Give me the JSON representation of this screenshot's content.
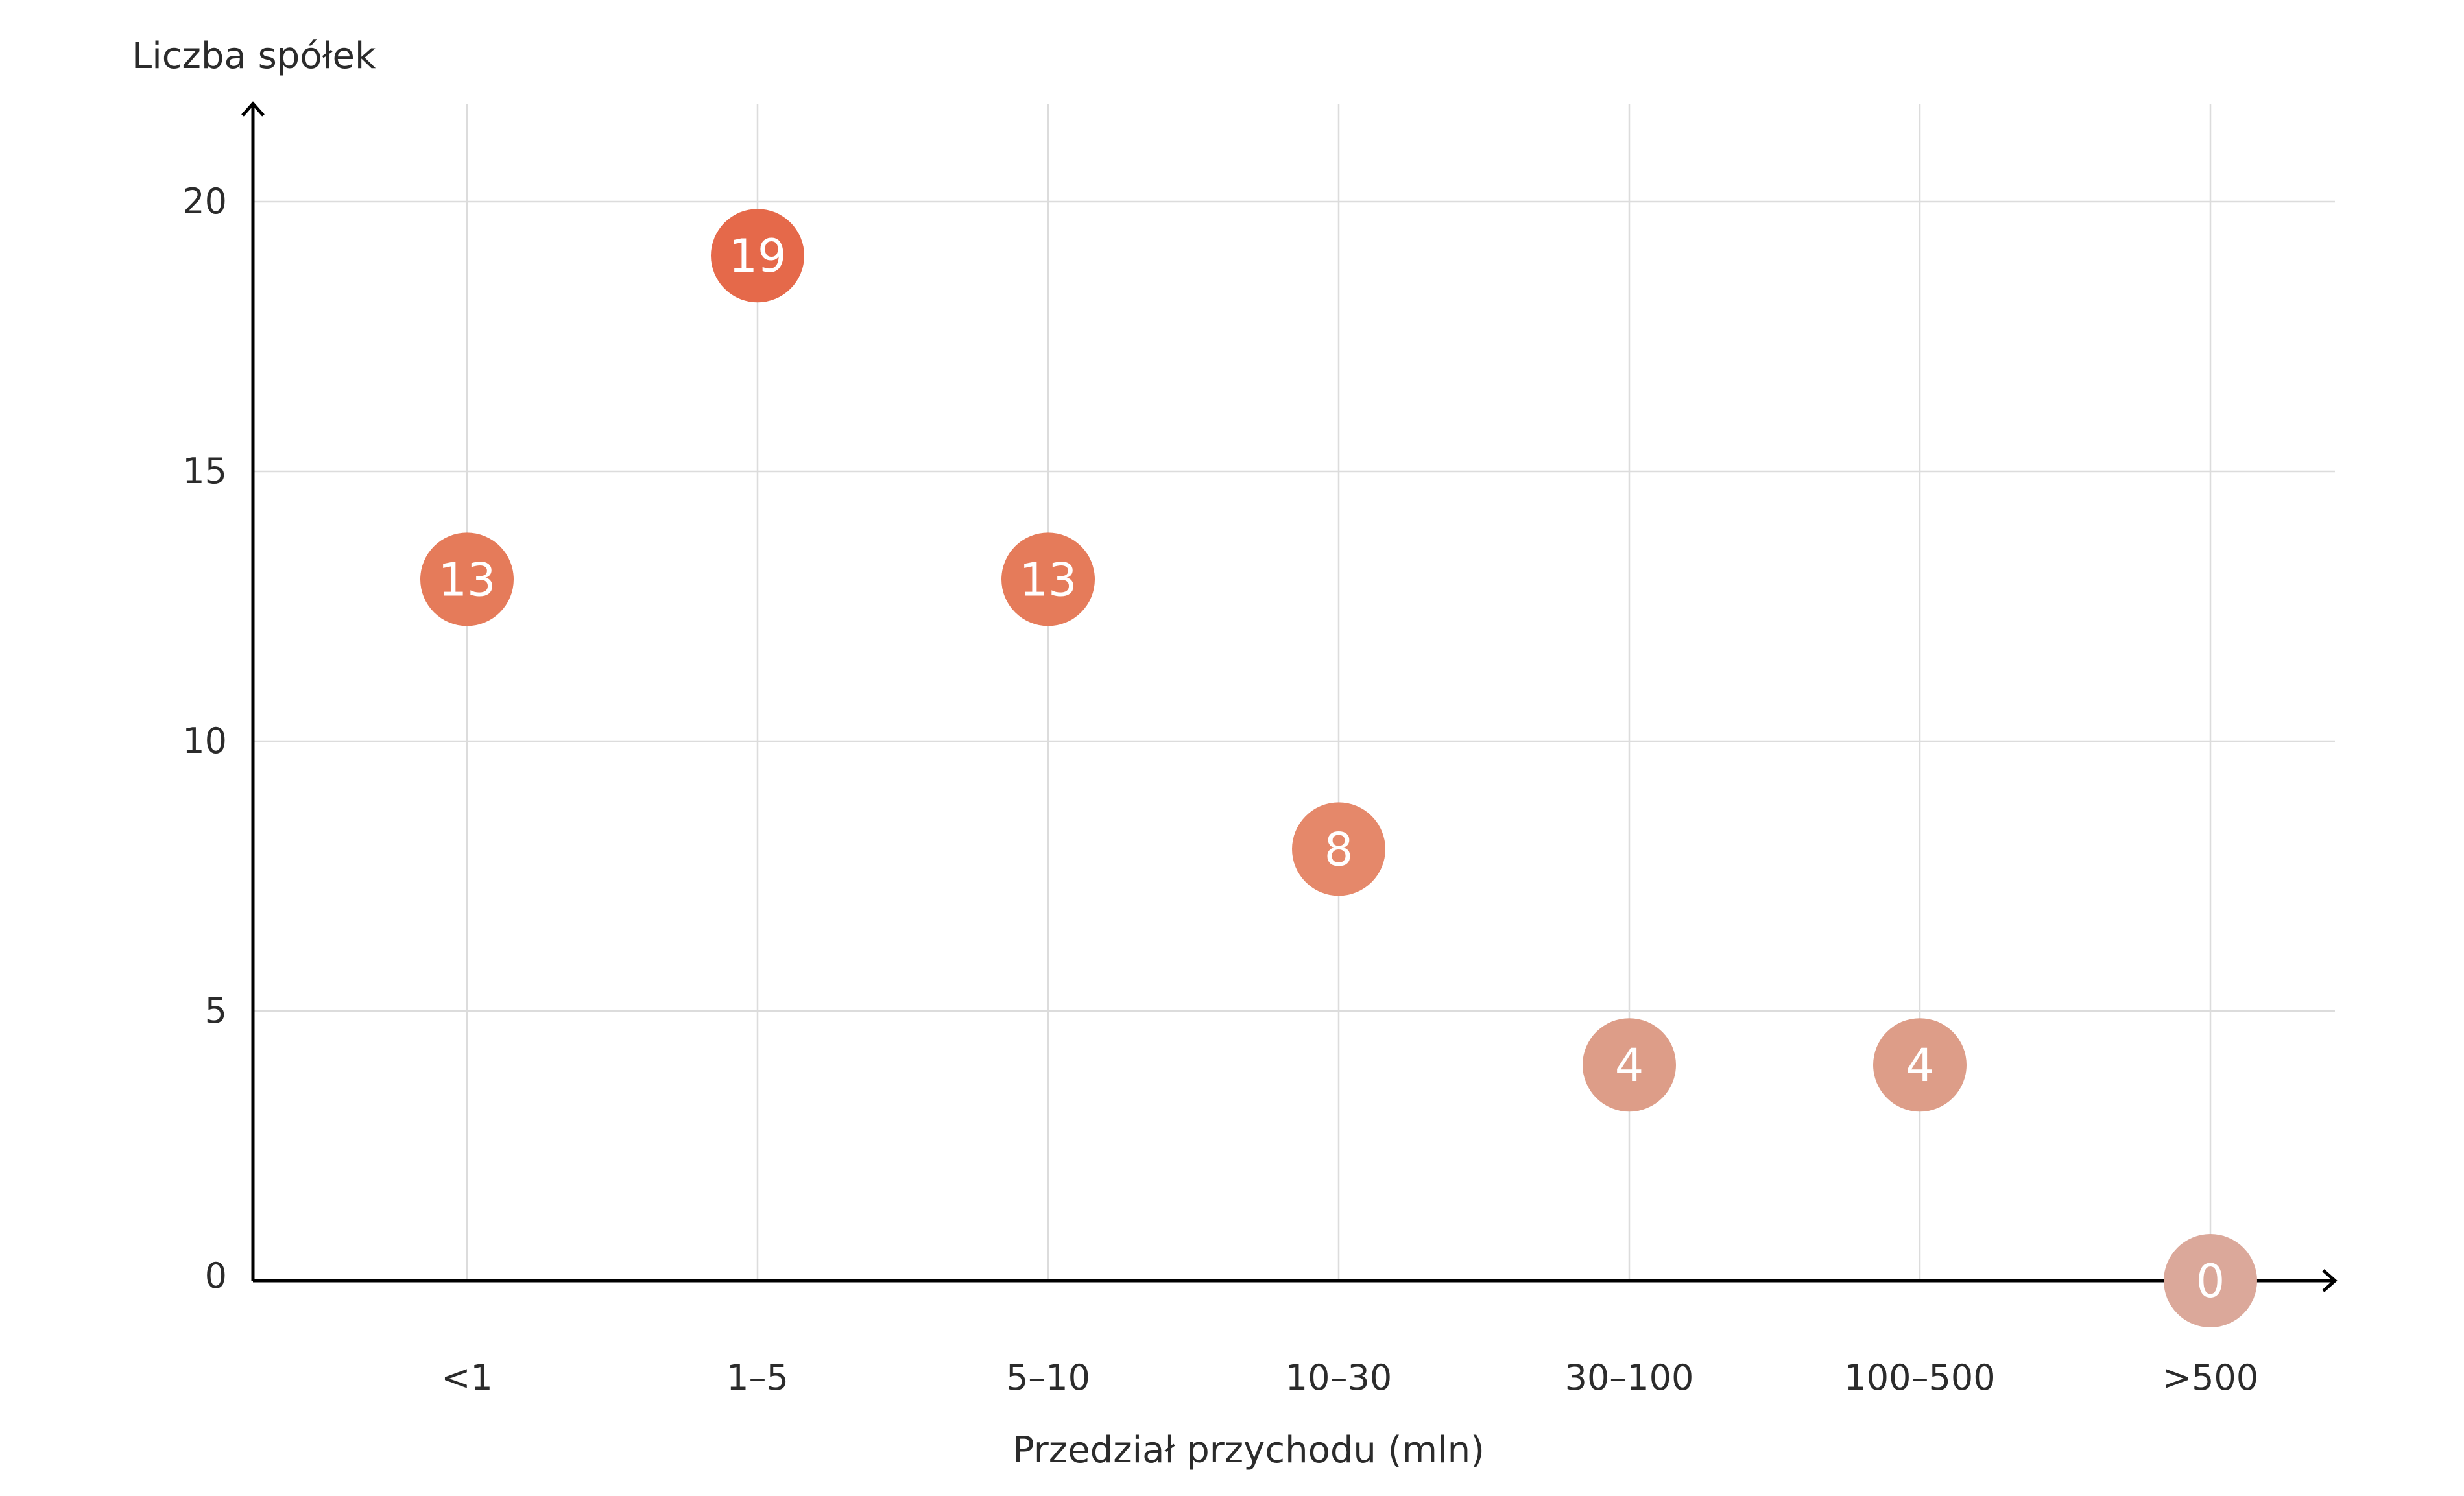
{
  "chart_data": {
    "type": "scatter",
    "xlabel": "Przedział przychodu (mln)",
    "ylabel": "Liczba spółek",
    "categories": [
      "<1",
      "1–5",
      "5–10",
      "10–30",
      "30–100",
      "100–500",
      ">500"
    ],
    "values": [
      13,
      19,
      13,
      8,
      4,
      4,
      0
    ],
    "point_labels": [
      "13",
      "19",
      "13",
      "8",
      "4",
      "4",
      "0"
    ],
    "yticks": [
      0,
      5,
      10,
      15,
      20
    ],
    "ylim": [
      0,
      21.8
    ],
    "grid": true,
    "point_colors": [
      "#e57b5a",
      "#e5694a",
      "#e57b5a",
      "#e5886a",
      "#dd9d88",
      "#dd9d88",
      "#dba89a"
    ]
  }
}
